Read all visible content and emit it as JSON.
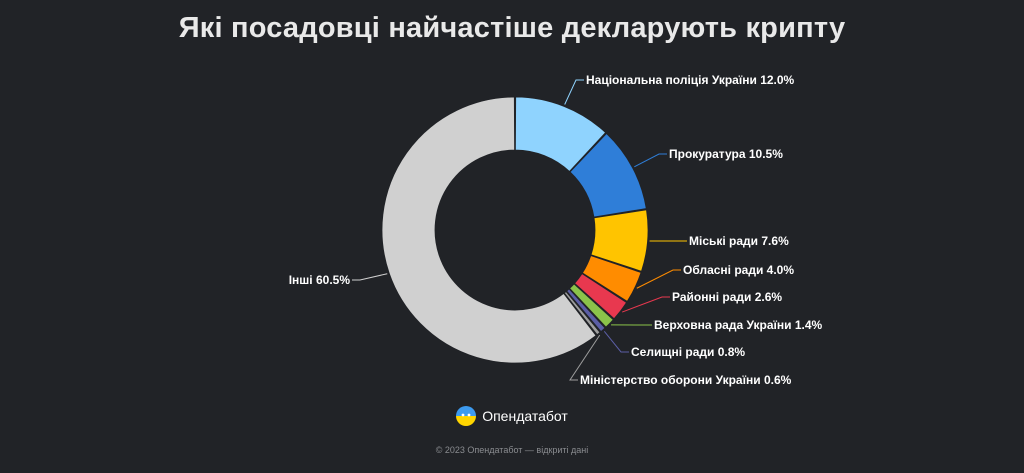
{
  "header": {
    "title": "Які посадовці найчастіше декларують крипту"
  },
  "brand": {
    "name": "Опендатабот",
    "icon": "opendatabot-logo-icon"
  },
  "footer": {
    "text": "© 2023 Опендатабот — відкриті дані"
  },
  "chart_data": {
    "type": "pie",
    "variant": "donut",
    "title": "Які посадовці найчастіше декларують крипту",
    "unit": "%",
    "slices": [
      {
        "label": "Національна поліція України",
        "value": 12.0,
        "display": "12.0%",
        "color": "#8fd3fe"
      },
      {
        "label": "Прокуратура",
        "value": 10.5,
        "display": "10.5%",
        "color": "#2f7ed8"
      },
      {
        "label": "Міські ради",
        "value": 7.6,
        "display": "7.6%",
        "color": "#ffc400"
      },
      {
        "label": "Обласні ради",
        "value": 4.0,
        "display": "4.0%",
        "color": "#ff8c00"
      },
      {
        "label": "Районні ради",
        "value": 2.6,
        "display": "2.6%",
        "color": "#e8384f"
      },
      {
        "label": "Верховна рада України",
        "value": 1.4,
        "display": "1.4%",
        "color": "#8bc34a"
      },
      {
        "label": "Селищні ради",
        "value": 0.8,
        "display": "0.8%",
        "color": "#5b5ea6"
      },
      {
        "label": "Міністерство оборони України",
        "value": 0.6,
        "display": "0.6%",
        "color": "#9e9e9e"
      },
      {
        "label": "Інші",
        "value": 60.5,
        "display": "60.5%",
        "color": "#d0d0d0"
      }
    ]
  }
}
